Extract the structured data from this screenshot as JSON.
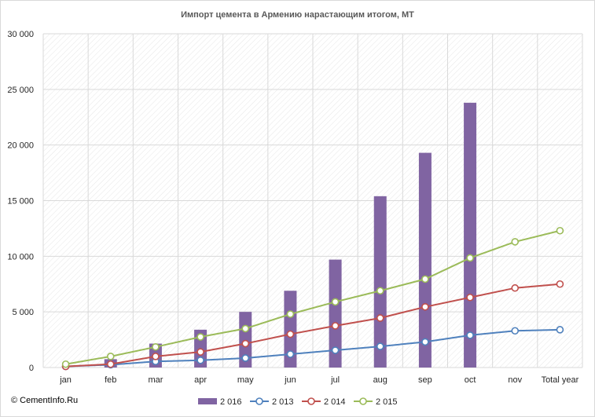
{
  "chart_data": {
    "type": "bar+line",
    "title": "Импорт цемента в Армению нарастающим  итогом, МТ",
    "categories": [
      "jan",
      "feb",
      "mar",
      "apr",
      "may",
      "jun",
      "jul",
      "aug",
      "sep",
      "oct",
      "nov",
      "Total year"
    ],
    "ylim": [
      0,
      30000
    ],
    "yticks": [
      0,
      5000,
      10000,
      15000,
      20000,
      25000,
      30000
    ],
    "ytick_labels": [
      "0",
      "5 000",
      "10 000",
      "15 000",
      "20 000",
      "25 000",
      "30 000"
    ],
    "grid": true,
    "legend_position": "bottom",
    "bar_series": {
      "name": "2 016",
      "color": "#8064a2",
      "values": [
        0,
        750,
        2150,
        3400,
        5000,
        6900,
        9700,
        15400,
        19300,
        23800,
        null,
        null
      ]
    },
    "line_series": [
      {
        "name": "2 013",
        "color": "#4f81bd",
        "values": [
          100,
          250,
          550,
          650,
          850,
          1200,
          1550,
          1900,
          2300,
          2900,
          3300,
          3400
        ]
      },
      {
        "name": "2 014",
        "color": "#c0504d",
        "values": [
          100,
          300,
          1000,
          1400,
          2150,
          3000,
          3750,
          4450,
          5450,
          6300,
          7150,
          7500
        ]
      },
      {
        "name": "2 015",
        "color": "#9bbb59",
        "values": [
          300,
          1000,
          1850,
          2750,
          3500,
          4800,
          5900,
          6900,
          7950,
          9850,
          11300,
          12300
        ]
      }
    ]
  },
  "watermark": "© CementInfo.Ru"
}
